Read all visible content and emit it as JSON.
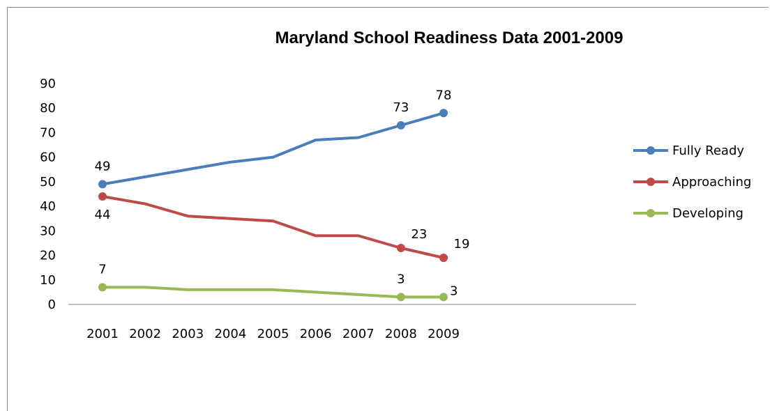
{
  "chart_data": {
    "type": "line",
    "title": "Maryland School Readiness Data 2001-2009",
    "xlabel": "",
    "ylabel": "",
    "categories": [
      "2001",
      "2002",
      "2003",
      "2004",
      "2005",
      "2006",
      "2007",
      "2008",
      "2009"
    ],
    "ylim": [
      0,
      90
    ],
    "yticks": [
      0,
      10,
      20,
      30,
      40,
      50,
      60,
      70,
      80,
      90
    ],
    "grid": false,
    "legend_position": "right",
    "series": [
      {
        "name": "Fully Ready",
        "color": "#4a7ebb",
        "values": [
          49,
          52,
          55,
          58,
          60,
          67,
          68,
          73,
          78
        ],
        "labels": [
          {
            "index": 0,
            "text": "49",
            "pos": "above"
          },
          {
            "index": 7,
            "text": "73",
            "pos": "above"
          },
          {
            "index": 8,
            "text": "78",
            "pos": "above"
          }
        ]
      },
      {
        "name": "Approaching",
        "color": "#be4b48",
        "values": [
          44,
          41,
          36,
          35,
          34,
          28,
          28,
          23,
          19
        ],
        "labels": [
          {
            "index": 0,
            "text": "44",
            "pos": "below"
          },
          {
            "index": 7,
            "text": "23",
            "pos": "above-right"
          },
          {
            "index": 8,
            "text": "19",
            "pos": "above-right"
          }
        ]
      },
      {
        "name": "Developing",
        "color": "#98b954",
        "values": [
          7,
          7,
          6,
          6,
          6,
          5,
          4,
          3,
          3
        ],
        "labels": [
          {
            "index": 0,
            "text": "7",
            "pos": "above"
          },
          {
            "index": 7,
            "text": "3",
            "pos": "above"
          },
          {
            "index": 8,
            "text": "3",
            "pos": "right"
          }
        ]
      }
    ]
  }
}
